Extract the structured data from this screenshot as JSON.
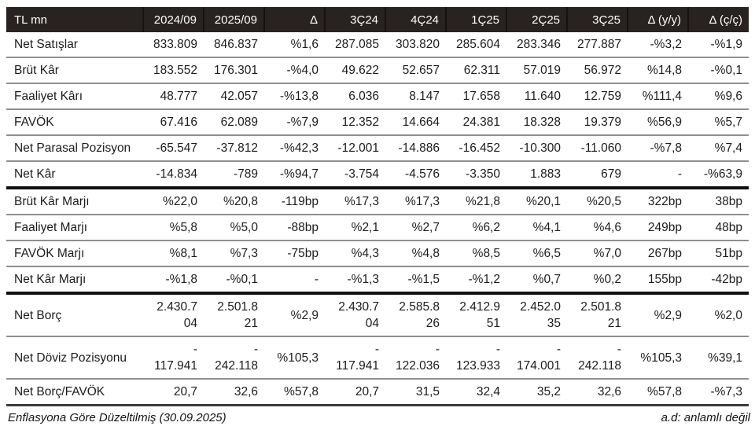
{
  "colors": {
    "header_bg": "#282220",
    "header_text": "#ffffff",
    "thin_rule": "#8f8f8f",
    "thick_rule": "#101010",
    "end_rule": "#3c3c3c"
  },
  "table": {
    "columns": [
      "TL mn",
      "2024/09",
      "2025/09",
      "Δ",
      "3Ç24",
      "4Ç24",
      "1Ç25",
      "2Ç25",
      "3Ç25",
      "Δ (y/y)",
      "Δ (ç/ç)"
    ],
    "rows": [
      {
        "label": "Net Satışlar",
        "rule_below": "thin",
        "values": [
          "833.809",
          "846.837",
          "%1,6",
          "287.085",
          "303.820",
          "285.604",
          "283.346",
          "277.887",
          "-%3,2",
          "-%1,9"
        ]
      },
      {
        "label": "Brüt Kâr",
        "rule_below": "thin",
        "values": [
          "183.552",
          "176.301",
          "-%4,0",
          "49.622",
          "52.657",
          "62.311",
          "57.019",
          "56.972",
          "%14,8",
          "-%0,1"
        ]
      },
      {
        "label": "Faaliyet Kârı",
        "rule_below": "thin",
        "values": [
          "48.777",
          "42.057",
          "-%13,8",
          "6.036",
          "8.147",
          "17.658",
          "11.640",
          "12.759",
          "%111,4",
          "%9,6"
        ]
      },
      {
        "label": "FAVÖK",
        "rule_below": "thin",
        "values": [
          "67.416",
          "62.089",
          "-%7,9",
          "12.352",
          "14.664",
          "24.381",
          "18.328",
          "19.379",
          "%56,9",
          "%5,7"
        ]
      },
      {
        "label": "Net Parasal Pozisyon",
        "rule_below": "thin",
        "values": [
          "-65.547",
          "-37.812",
          "-%42,3",
          "-12.001",
          "-14.886",
          "-16.452",
          "-10.300",
          "-11.060",
          "-%7,8",
          "%7,4"
        ]
      },
      {
        "label": "Net Kâr",
        "rule_below": "thick",
        "values": [
          "-14.834",
          "-789",
          "-%94,7",
          "-3.754",
          "-4.576",
          "-3.350",
          "1.883",
          "679",
          "-",
          "-%63,9"
        ]
      },
      {
        "label": "Brüt Kâr Marjı",
        "rule_below": "thin",
        "values": [
          "%22,0",
          "%20,8",
          "-119bp",
          "%17,3",
          "%17,3",
          "%21,8",
          "%20,1",
          "%20,5",
          "322bp",
          "38bp"
        ]
      },
      {
        "label": "Faaliyet Marjı",
        "rule_below": "thin",
        "values": [
          "%5,8",
          "%5,0",
          "-88bp",
          "%2,1",
          "%2,7",
          "%6,2",
          "%4,1",
          "%4,6",
          "249bp",
          "48bp"
        ]
      },
      {
        "label": "FAVÖK Marjı",
        "rule_below": "thin",
        "values": [
          "%8,1",
          "%7,3",
          "-75bp",
          "%4,3",
          "%4,8",
          "%8,5",
          "%6,5",
          "%7,0",
          "267bp",
          "51bp"
        ]
      },
      {
        "label": "Net Kâr Marjı",
        "rule_below": "thick",
        "values": [
          "-%1,8",
          "-%0,1",
          "-",
          "-%1,3",
          "-%1,5",
          "-%1,2",
          "%0,7",
          "%0,2",
          "155bp",
          "-42bp"
        ]
      },
      {
        "label": "Net Borç",
        "rule_below": "thin",
        "values": [
          "2.430.7\n04",
          "2.501.8\n21",
          "%2,9",
          "2.430.7\n04",
          "2.585.8\n26",
          "2.412.9\n51",
          "2.452.0\n35",
          "2.501.8\n21",
          "%2,9",
          "%2,0"
        ]
      },
      {
        "label": "Net Döviz Pozisyonu",
        "rule_below": "thin",
        "values": [
          "-\n117.941",
          "-\n242.118",
          "%105,3",
          "-\n117.941",
          "-\n122.036",
          "-\n123.933",
          "-\n174.001",
          "-\n242.118",
          "%105,3",
          "%39,1"
        ]
      },
      {
        "label": "Net Borç/FAVÖK",
        "rule_below": "end",
        "values": [
          "20,7",
          "32,6",
          "%57,8",
          "20,7",
          "31,5",
          "32,4",
          "35,2",
          "32,6",
          "%57,8",
          "-%7,3"
        ]
      }
    ],
    "footnote_left": "Enflasyona Göre Düzeltilmiş (30.09.2025)",
    "footnote_right": "a.d: anlamlı değil"
  }
}
